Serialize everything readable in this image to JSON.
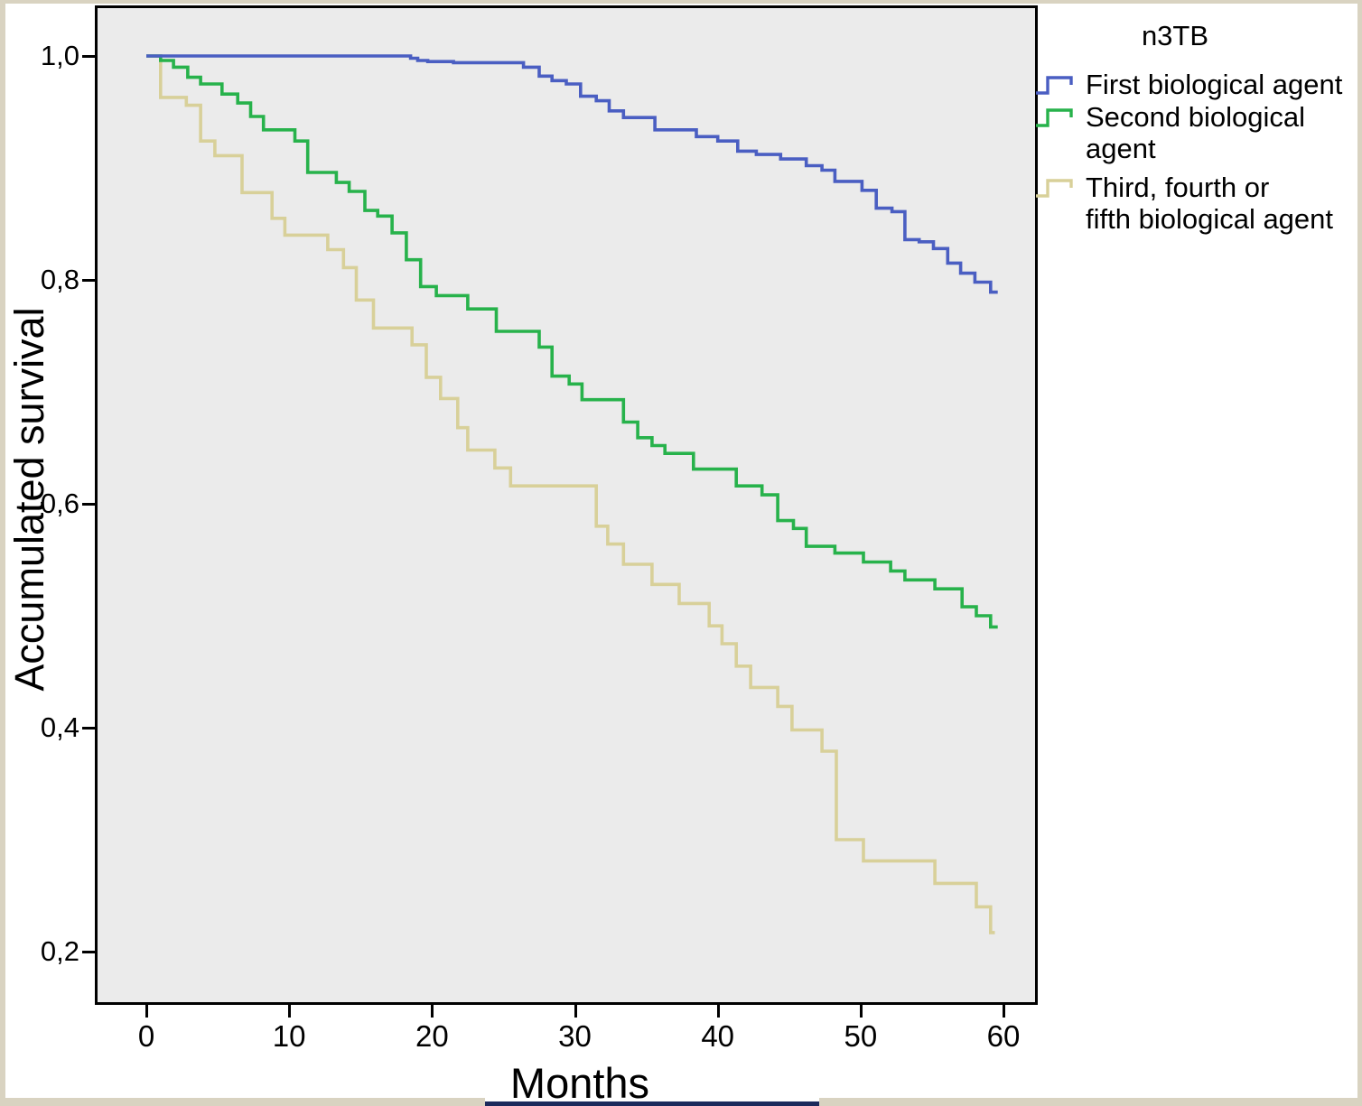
{
  "y_axis": {
    "title": "Accumulated survival",
    "ticks": [
      "1,0",
      "0,8",
      "0,6",
      "0,4",
      "0,2"
    ],
    "tick_values": [
      1.0,
      0.8,
      0.6,
      0.4,
      0.2
    ]
  },
  "x_axis": {
    "title": "Months",
    "ticks": [
      "0",
      "10",
      "20",
      "30",
      "40",
      "50",
      "60"
    ],
    "tick_values": [
      0,
      10,
      20,
      30,
      40,
      50,
      60
    ]
  },
  "legend": {
    "title": "n3TB",
    "items": [
      {
        "lines": [
          "First biological agent"
        ],
        "color": "#4a5ec2"
      },
      {
        "lines": [
          "Second biological",
          "agent"
        ],
        "color": "#27b24b"
      },
      {
        "lines": [
          "Third, fourth or",
          "fifth biological agent"
        ],
        "color": "#d8d099"
      }
    ]
  },
  "colors": {
    "plot_background": "#ebebeb",
    "frame": "#000000",
    "first_agent": "#4a5ec2",
    "second_agent": "#27b24b",
    "third_agent": "#d8d099",
    "page_edge": "#d9d3c1",
    "bottom_bar": "#1b2a5c"
  },
  "chart_data": {
    "type": "line",
    "subtype": "kaplan-meier-step",
    "title": "",
    "xlabel": "Months",
    "ylabel": "Accumulated survival",
    "xlim": [
      -3.4,
      62.2
    ],
    "ylim": [
      0.155,
      1.043
    ],
    "grid": false,
    "legend_position": "right-outside",
    "legend_title": "n3TB",
    "series": [
      {
        "name": "Third, fourth or fifth biological agent",
        "color": "#d8d099",
        "end_month": 59.4,
        "points": [
          [
            0,
            1.0
          ],
          [
            1,
            0.963
          ],
          [
            2.8,
            0.956
          ],
          [
            3.8,
            0.924
          ],
          [
            4.8,
            0.911
          ],
          [
            6.7,
            0.878
          ],
          [
            8.8,
            0.855
          ],
          [
            9.7,
            0.84
          ],
          [
            12.7,
            0.827
          ],
          [
            13.8,
            0.811
          ],
          [
            14.7,
            0.782
          ],
          [
            15.9,
            0.757
          ],
          [
            18.6,
            0.742
          ],
          [
            19.6,
            0.713
          ],
          [
            20.6,
            0.694
          ],
          [
            21.8,
            0.668
          ],
          [
            22.5,
            0.648
          ],
          [
            24.4,
            0.632
          ],
          [
            25.5,
            0.616
          ],
          [
            31.5,
            0.58
          ],
          [
            32.3,
            0.564
          ],
          [
            33.4,
            0.546
          ],
          [
            35.4,
            0.528
          ],
          [
            37.3,
            0.511
          ],
          [
            39.4,
            0.491
          ],
          [
            40.3,
            0.475
          ],
          [
            41.3,
            0.455
          ],
          [
            42.3,
            0.436
          ],
          [
            44.2,
            0.419
          ],
          [
            45.2,
            0.398
          ],
          [
            47.3,
            0.379
          ],
          [
            48.3,
            0.3
          ],
          [
            50.2,
            0.281
          ],
          [
            55.2,
            0.261
          ],
          [
            58.1,
            0.24
          ],
          [
            59.1,
            0.217
          ]
        ]
      },
      {
        "name": "Second biological agent",
        "color": "#27b24b",
        "end_month": 59.6,
        "points": [
          [
            0,
            1.0
          ],
          [
            1,
            0.996
          ],
          [
            1.9,
            0.99
          ],
          [
            2.9,
            0.981
          ],
          [
            3.8,
            0.975
          ],
          [
            5.3,
            0.966
          ],
          [
            6.4,
            0.958
          ],
          [
            7.3,
            0.946
          ],
          [
            8.2,
            0.934
          ],
          [
            10.4,
            0.924
          ],
          [
            11.3,
            0.896
          ],
          [
            13.3,
            0.887
          ],
          [
            14.2,
            0.879
          ],
          [
            15.3,
            0.862
          ],
          [
            16.2,
            0.857
          ],
          [
            17.2,
            0.842
          ],
          [
            18.2,
            0.818
          ],
          [
            19.2,
            0.794
          ],
          [
            20.3,
            0.786
          ],
          [
            22.5,
            0.774
          ],
          [
            24.5,
            0.754
          ],
          [
            27.5,
            0.74
          ],
          [
            28.4,
            0.714
          ],
          [
            29.6,
            0.707
          ],
          [
            30.5,
            0.693
          ],
          [
            33.4,
            0.673
          ],
          [
            34.4,
            0.659
          ],
          [
            35.4,
            0.652
          ],
          [
            36.3,
            0.645
          ],
          [
            38.3,
            0.631
          ],
          [
            41.3,
            0.616
          ],
          [
            43.1,
            0.608
          ],
          [
            44.2,
            0.585
          ],
          [
            45.3,
            0.578
          ],
          [
            46.2,
            0.562
          ],
          [
            48.2,
            0.556
          ],
          [
            50.2,
            0.548
          ],
          [
            52.1,
            0.54
          ],
          [
            53.1,
            0.532
          ],
          [
            55.2,
            0.524
          ],
          [
            57.1,
            0.508
          ],
          [
            58.1,
            0.5
          ],
          [
            59.1,
            0.49
          ]
        ]
      },
      {
        "name": "First biological agent",
        "color": "#4a5ec2",
        "end_month": 59.6,
        "points": [
          [
            0,
            1.0
          ],
          [
            18.5,
            0.998
          ],
          [
            19,
            0.996
          ],
          [
            19.7,
            0.995
          ],
          [
            21.5,
            0.994
          ],
          [
            26.4,
            0.99
          ],
          [
            27.5,
            0.982
          ],
          [
            28.4,
            0.978
          ],
          [
            29.4,
            0.975
          ],
          [
            30.4,
            0.964
          ],
          [
            31.5,
            0.96
          ],
          [
            32.4,
            0.951
          ],
          [
            33.4,
            0.945
          ],
          [
            35.6,
            0.934
          ],
          [
            38.5,
            0.928
          ],
          [
            40,
            0.924
          ],
          [
            41.4,
            0.915
          ],
          [
            42.7,
            0.912
          ],
          [
            44.4,
            0.908
          ],
          [
            46.2,
            0.902
          ],
          [
            47.3,
            0.898
          ],
          [
            48.2,
            0.888
          ],
          [
            50.1,
            0.88
          ],
          [
            51.1,
            0.864
          ],
          [
            52.2,
            0.861
          ],
          [
            53.1,
            0.836
          ],
          [
            54.1,
            0.834
          ],
          [
            55.1,
            0.828
          ],
          [
            56.1,
            0.815
          ],
          [
            57,
            0.806
          ],
          [
            58,
            0.798
          ],
          [
            59.1,
            0.789
          ]
        ]
      }
    ]
  }
}
